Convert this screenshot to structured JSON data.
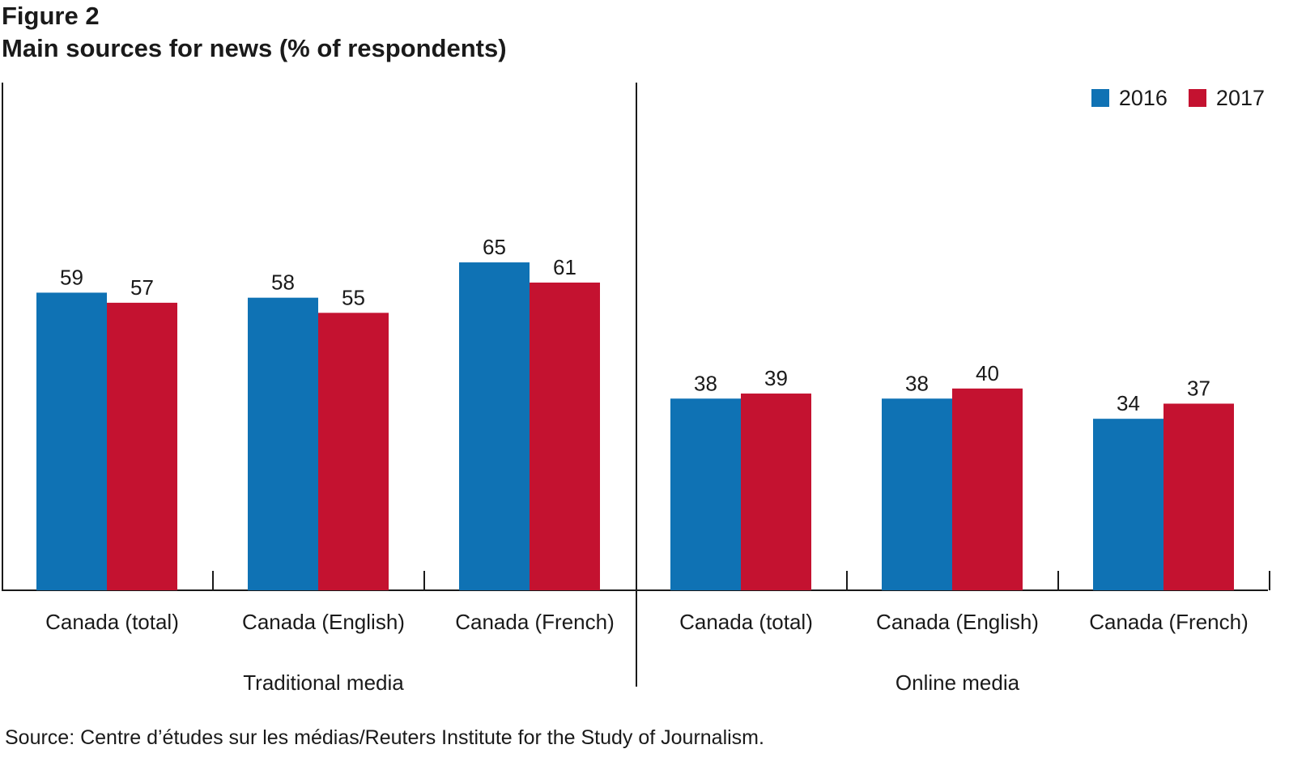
{
  "figure_label": "Figure 2",
  "title": "Main sources for news (% of respondents)",
  "source": "Source: Centre d’études sur les médias/Reuters Institute for the Study of Journalism.",
  "colors": {
    "s2016": "#0f72b4",
    "s2017": "#c41230",
    "axis": "#1a1a1a"
  },
  "chart_data": {
    "type": "bar",
    "categories": [
      "Canada (total)",
      "Canada (English)",
      "Canada (French)",
      "Canada (total)",
      "Canada (English)",
      "Canada (French)"
    ],
    "groups": [
      {
        "label": "Traditional media",
        "category_indices": [
          0,
          1,
          2
        ]
      },
      {
        "label": "Online media",
        "category_indices": [
          3,
          4,
          5
        ]
      }
    ],
    "series": [
      {
        "name": "2016",
        "values": [
          59,
          58,
          65,
          38,
          38,
          34
        ]
      },
      {
        "name": "2017",
        "values": [
          57,
          55,
          61,
          39,
          40,
          37
        ]
      }
    ],
    "ylim": [
      0,
      100
    ],
    "legend": "top-right",
    "grid": false,
    "data_labels": true
  }
}
